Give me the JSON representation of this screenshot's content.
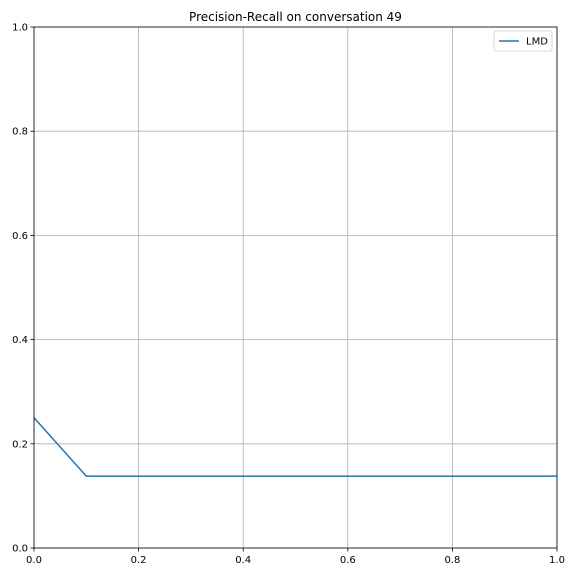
{
  "chart_data": {
    "type": "line",
    "title": "Precision-Recall on conversation 49",
    "xlabel": "",
    "ylabel": "",
    "xlim": [
      0.0,
      1.0
    ],
    "ylim": [
      0.0,
      1.0
    ],
    "x_ticks": [
      0.0,
      0.2,
      0.4,
      0.6,
      0.8,
      1.0
    ],
    "y_ticks": [
      0.0,
      0.2,
      0.4,
      0.6,
      0.8,
      1.0
    ],
    "x_tick_labels": [
      "0.0",
      "0.2",
      "0.4",
      "0.6",
      "0.8",
      "1.0"
    ],
    "y_tick_labels": [
      "0.0",
      "0.2",
      "0.4",
      "0.6",
      "0.8",
      "1.0"
    ],
    "grid": true,
    "legend_position": "top-right",
    "series": [
      {
        "name": "LMD",
        "color": "#1f77b4",
        "x": [
          0.0,
          0.1,
          0.2,
          0.3,
          0.4,
          0.5,
          0.6,
          0.7,
          0.8,
          0.9,
          1.0
        ],
        "y": [
          0.25,
          0.138,
          0.138,
          0.138,
          0.138,
          0.138,
          0.138,
          0.138,
          0.138,
          0.138,
          0.138
        ]
      }
    ]
  }
}
